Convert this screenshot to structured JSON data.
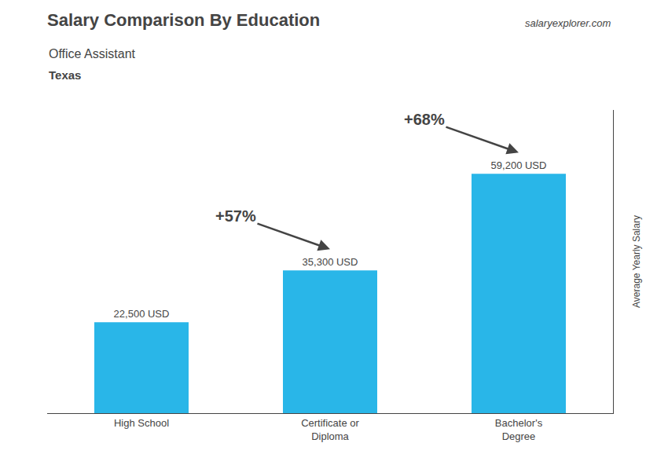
{
  "chart_data": {
    "type": "bar",
    "title": "Salary Comparison By Education",
    "subtitle": [
      "Office Assistant",
      "Texas"
    ],
    "ylabel": "Average Yearly Salary",
    "categories": [
      "High School",
      "Certificate or\nDiploma",
      "Bachelor's\nDegree"
    ],
    "values": [
      22500,
      35300,
      59200
    ],
    "value_labels": [
      "22,500 USD",
      "35,300 USD",
      "59,200 USD"
    ],
    "data_labels": true,
    "color": "#29b6e8",
    "ylim": [
      0,
      75000
    ],
    "grid": false,
    "tick_labels": "x",
    "annotations": [
      {
        "text": "salaryexplorer.com"
      },
      {
        "text": "+57%",
        "from": "High School",
        "to": "Certificate or\nDiploma"
      },
      {
        "text": "+68%",
        "from": "Certificate or\nDiploma",
        "to": "Bachelor's\nDegree"
      }
    ]
  }
}
